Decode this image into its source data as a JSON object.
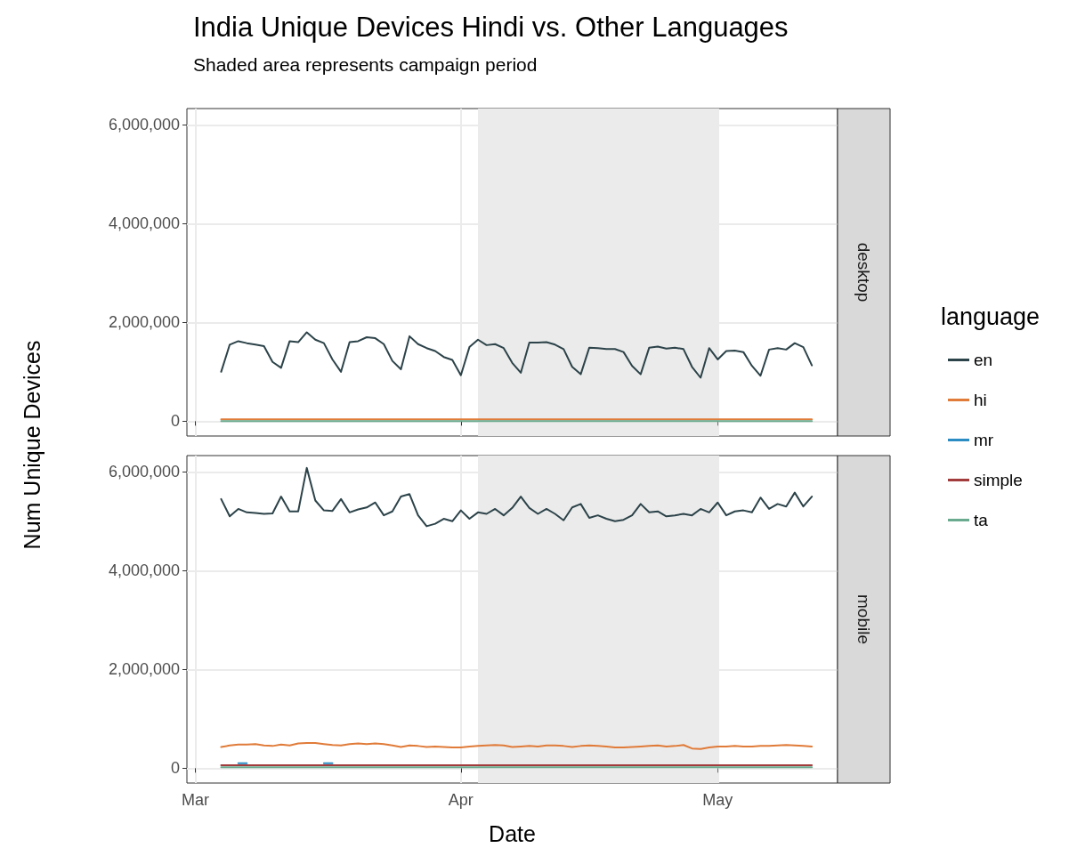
{
  "chart_data": [
    {
      "type": "line",
      "title": "India Unique Devices Hindi vs. Other Languages",
      "subtitle": "Shaded area represents campaign period",
      "ylabel": "Num Unique Devices",
      "legend_title": "language",
      "annotations": [
        "desktop"
      ],
      "x": [
        "--03-04",
        "--03-05",
        "--03-06",
        "--03-07",
        "--03-08",
        "--03-09",
        "--03-10",
        "--03-11",
        "--03-12",
        "--03-13",
        "--03-14",
        "--03-15",
        "--03-16",
        "--03-17",
        "--03-18",
        "--03-19",
        "--03-20",
        "--03-21",
        "--03-22",
        "--03-23",
        "--03-24",
        "--03-25",
        "--03-26",
        "--03-27",
        "--03-28",
        "--03-29",
        "--03-30",
        "--03-31",
        "--04-01",
        "--04-02",
        "--04-03",
        "--04-04",
        "--04-05",
        "--04-06",
        "--04-07",
        "--04-08",
        "--04-09",
        "--04-10",
        "--04-11",
        "--04-12",
        "--04-13",
        "--04-14",
        "--04-15",
        "--04-16",
        "--04-17",
        "--04-18",
        "--04-19",
        "--04-20",
        "--04-21",
        "--04-22",
        "--04-23",
        "--04-24",
        "--04-25",
        "--04-26",
        "--04-27",
        "--04-28",
        "--04-29",
        "--04-30",
        "--05-01",
        "--05-02",
        "--05-03",
        "--05-04",
        "--05-05",
        "--05-06",
        "--05-07",
        "--05-08",
        "--05-09",
        "--05-10",
        "--05-11",
        "--05-12"
      ],
      "series": [
        {
          "name": "en",
          "color": "#2c4349",
          "values": [
            1000000,
            1550000,
            1620000,
            1580000,
            1550000,
            1520000,
            1200000,
            1080000,
            1620000,
            1600000,
            1800000,
            1650000,
            1580000,
            1250000,
            1000000,
            1600000,
            1620000,
            1700000,
            1680000,
            1560000,
            1220000,
            1050000,
            1720000,
            1560000,
            1480000,
            1420000,
            1300000,
            1240000,
            930000,
            1500000,
            1650000,
            1540000,
            1560000,
            1480000,
            1180000,
            980000,
            1590000,
            1590000,
            1600000,
            1550000,
            1460000,
            1100000,
            950000,
            1490000,
            1480000,
            1460000,
            1460000,
            1400000,
            1120000,
            950000,
            1490000,
            1510000,
            1470000,
            1490000,
            1460000,
            1100000,
            880000,
            1480000,
            1250000,
            1420000,
            1430000,
            1400000,
            1120000,
            920000,
            1450000,
            1480000,
            1450000,
            1580000,
            1500000,
            1130000
          ]
        },
        {
          "name": "hi",
          "color": "#e07b39",
          "values": [
            40000,
            40000,
            40000,
            40000,
            40000,
            40000,
            40000,
            40000,
            40000,
            40000,
            40000,
            40000,
            40000,
            40000,
            40000,
            40000,
            40000,
            40000,
            40000,
            40000,
            40000,
            40000,
            40000,
            40000,
            40000,
            40000,
            40000,
            40000,
            40000,
            40000,
            40000,
            40000,
            40000,
            40000,
            40000,
            40000,
            40000,
            40000,
            40000,
            40000,
            40000,
            40000,
            40000,
            40000,
            40000,
            40000,
            40000,
            40000,
            40000,
            40000,
            40000,
            40000,
            40000,
            40000,
            40000,
            40000,
            40000,
            40000,
            40000,
            40000,
            40000,
            40000,
            40000,
            40000,
            40000,
            40000,
            40000,
            40000,
            40000,
            40000
          ]
        },
        {
          "name": "mr",
          "color": "#2b8cc4",
          "values": [
            null,
            null,
            null,
            null,
            null,
            null,
            null,
            null,
            null,
            null,
            null,
            null,
            null,
            null,
            null,
            null,
            null,
            null,
            null,
            null,
            null,
            null,
            null,
            null,
            null,
            null,
            null,
            null,
            null,
            null,
            null,
            null,
            null,
            null,
            null,
            null,
            null,
            null,
            null,
            null,
            null,
            null,
            null,
            null,
            null,
            null,
            null,
            null,
            null,
            null,
            null,
            null,
            null,
            null,
            null,
            null,
            null,
            null,
            null,
            null,
            null,
            null,
            null,
            null,
            null,
            null,
            null,
            null,
            null,
            null
          ]
        },
        {
          "name": "simple",
          "color": "#a23b3b",
          "values": [
            null,
            null,
            null,
            null,
            null,
            null,
            null,
            null,
            null,
            null,
            null,
            null,
            null,
            null,
            null,
            null,
            null,
            null,
            null,
            null,
            null,
            null,
            null,
            null,
            null,
            null,
            null,
            null,
            null,
            null,
            null,
            null,
            null,
            null,
            null,
            null,
            null,
            null,
            null,
            null,
            null,
            null,
            null,
            null,
            null,
            null,
            null,
            null,
            null,
            null,
            null,
            null,
            null,
            null,
            null,
            null,
            null,
            null,
            null,
            null,
            null,
            null,
            null,
            null,
            null,
            null,
            null,
            null,
            null,
            null
          ]
        },
        {
          "name": "ta",
          "color": "#6aaa8e",
          "values": [
            0,
            0,
            0,
            0,
            0,
            0,
            0,
            0,
            0,
            0,
            0,
            0,
            0,
            0,
            0,
            0,
            0,
            0,
            0,
            0,
            0,
            0,
            0,
            0,
            0,
            0,
            0,
            0,
            0,
            0,
            0,
            0,
            0,
            0,
            0,
            0,
            0,
            0,
            0,
            0,
            0,
            0,
            0,
            0,
            0,
            0,
            0,
            0,
            0,
            0,
            0,
            0,
            0,
            0,
            0,
            0,
            0,
            0,
            0,
            0,
            0,
            0,
            0,
            0,
            0,
            0,
            0,
            0,
            0,
            0
          ]
        }
      ],
      "xlim": [
        "--02-28",
        "--05-15"
      ],
      "xticks": [
        {
          "value": "--03-01",
          "label": null
        },
        {
          "value": "--04-01",
          "label": null
        },
        {
          "value": "--05-01",
          "label": null
        }
      ],
      "ylim": [
        -300000,
        6330000
      ],
      "yticks": [
        {
          "value": 0,
          "label": "0"
        },
        {
          "value": 2000000,
          "label": "2,000,000"
        },
        {
          "value": 4000000,
          "label": "4,000,000"
        },
        {
          "value": 6000000,
          "label": "6,000,000"
        }
      ],
      "bands": [
        {
          "axis": "x",
          "from": "--04-03",
          "to": "--05-01",
          "color": "#ebebeb"
        }
      ],
      "grid": true,
      "legend": "right",
      "marker": "none",
      "line_style": "solid",
      "tick_labels": "y"
    },
    {
      "type": "line",
      "xlabel": "Date",
      "annotations": [
        "mobile"
      ],
      "x": [
        "--03-04",
        "--03-05",
        "--03-06",
        "--03-07",
        "--03-08",
        "--03-09",
        "--03-10",
        "--03-11",
        "--03-12",
        "--03-13",
        "--03-14",
        "--03-15",
        "--03-16",
        "--03-17",
        "--03-18",
        "--03-19",
        "--03-20",
        "--03-21",
        "--03-22",
        "--03-23",
        "--03-24",
        "--03-25",
        "--03-26",
        "--03-27",
        "--03-28",
        "--03-29",
        "--03-30",
        "--03-31",
        "--04-01",
        "--04-02",
        "--04-03",
        "--04-04",
        "--04-05",
        "--04-06",
        "--04-07",
        "--04-08",
        "--04-09",
        "--04-10",
        "--04-11",
        "--04-12",
        "--04-13",
        "--04-14",
        "--04-15",
        "--04-16",
        "--04-17",
        "--04-18",
        "--04-19",
        "--04-20",
        "--04-21",
        "--04-22",
        "--04-23",
        "--04-24",
        "--04-25",
        "--04-26",
        "--04-27",
        "--04-28",
        "--04-29",
        "--04-30",
        "--05-01",
        "--05-02",
        "--05-03",
        "--05-04",
        "--05-05",
        "--05-06",
        "--05-07",
        "--05-08",
        "--05-09",
        "--05-10",
        "--05-11",
        "--05-12"
      ],
      "series": [
        {
          "color": "#2c4349",
          "values": [
            5450000,
            5100000,
            5250000,
            5180000,
            5170000,
            5150000,
            5160000,
            5500000,
            5200000,
            5200000,
            6080000,
            5420000,
            5220000,
            5210000,
            5450000,
            5180000,
            5240000,
            5280000,
            5380000,
            5120000,
            5200000,
            5500000,
            5550000,
            5120000,
            4900000,
            4950000,
            5050000,
            5000000,
            5220000,
            5050000,
            5180000,
            5150000,
            5250000,
            5120000,
            5270000,
            5500000,
            5270000,
            5150000,
            5250000,
            5150000,
            5020000,
            5280000,
            5350000,
            5070000,
            5120000,
            5050000,
            5000000,
            5030000,
            5120000,
            5350000,
            5180000,
            5200000,
            5100000,
            5120000,
            5150000,
            5120000,
            5250000,
            5180000,
            5380000,
            5120000,
            5200000,
            5220000,
            5180000,
            5480000,
            5250000,
            5350000,
            5300000,
            5580000,
            5300000,
            5500000
          ]
        },
        {
          "color": "#e07b39",
          "values": [
            430000,
            460000,
            480000,
            480000,
            490000,
            460000,
            450000,
            480000,
            460000,
            500000,
            510000,
            510000,
            490000,
            470000,
            460000,
            490000,
            500000,
            490000,
            500000,
            490000,
            460000,
            430000,
            460000,
            450000,
            430000,
            440000,
            430000,
            420000,
            420000,
            440000,
            450000,
            460000,
            470000,
            460000,
            430000,
            440000,
            450000,
            440000,
            460000,
            460000,
            450000,
            430000,
            450000,
            460000,
            450000,
            440000,
            420000,
            420000,
            430000,
            440000,
            450000,
            460000,
            440000,
            450000,
            470000,
            400000,
            390000,
            420000,
            440000,
            440000,
            450000,
            440000,
            440000,
            450000,
            450000,
            460000,
            470000,
            460000,
            450000,
            440000
          ]
        },
        {
          "color": "#2b8cc4",
          "values": [
            null,
            null,
            100000,
            100000,
            null,
            null,
            null,
            null,
            null,
            null,
            null,
            null,
            100000,
            100000,
            null,
            null,
            null,
            null,
            null,
            null,
            null,
            null,
            null,
            null,
            null,
            null,
            null,
            null,
            null,
            null,
            null,
            null,
            null,
            null,
            null,
            null,
            null,
            null,
            null,
            null,
            null,
            null,
            null,
            null,
            null,
            null,
            null,
            null,
            null,
            null,
            null,
            null,
            null,
            null,
            null,
            null,
            null,
            null,
            null,
            null,
            null,
            null,
            null,
            null,
            null,
            null,
            null,
            null,
            null,
            null
          ]
        },
        {
          "color": "#a23b3b",
          "values": [
            60000,
            60000,
            60000,
            60000,
            60000,
            60000,
            60000,
            60000,
            60000,
            60000,
            60000,
            60000,
            60000,
            60000,
            60000,
            60000,
            60000,
            60000,
            60000,
            60000,
            60000,
            60000,
            60000,
            60000,
            60000,
            60000,
            60000,
            60000,
            60000,
            60000,
            60000,
            60000,
            60000,
            60000,
            60000,
            60000,
            60000,
            60000,
            60000,
            60000,
            60000,
            60000,
            60000,
            60000,
            60000,
            60000,
            60000,
            60000,
            60000,
            60000,
            60000,
            60000,
            60000,
            60000,
            60000,
            60000,
            60000,
            60000,
            60000,
            60000,
            60000,
            60000,
            60000,
            60000,
            60000,
            60000,
            60000,
            60000,
            60000,
            60000
          ]
        },
        {
          "color": "#6aaa8e",
          "values": [
            20000,
            20000,
            20000,
            20000,
            20000,
            20000,
            20000,
            20000,
            20000,
            20000,
            20000,
            20000,
            20000,
            20000,
            20000,
            20000,
            20000,
            20000,
            20000,
            20000,
            20000,
            20000,
            20000,
            20000,
            20000,
            20000,
            20000,
            20000,
            20000,
            20000,
            20000,
            20000,
            20000,
            20000,
            20000,
            20000,
            20000,
            20000,
            20000,
            20000,
            20000,
            20000,
            20000,
            20000,
            20000,
            20000,
            20000,
            20000,
            20000,
            20000,
            20000,
            20000,
            20000,
            20000,
            20000,
            20000,
            20000,
            20000,
            20000,
            20000,
            20000,
            20000,
            20000,
            20000,
            20000,
            20000,
            20000,
            20000,
            20000,
            20000
          ]
        }
      ],
      "xlim": [
        "--02-28",
        "--05-15"
      ],
      "xticks": [
        {
          "value": "--03-01",
          "label": "Mar"
        },
        {
          "value": "--04-01",
          "label": "Apr"
        },
        {
          "value": "--05-01",
          "label": "May"
        }
      ],
      "ylim": [
        -300000,
        6330000
      ],
      "yticks": [
        {
          "value": 0,
          "label": "0"
        },
        {
          "value": 2000000,
          "label": "2,000,000"
        },
        {
          "value": 4000000,
          "label": "4,000,000"
        },
        {
          "value": 6000000,
          "label": "6,000,000"
        }
      ],
      "bands": [
        {
          "axis": "x",
          "from": "--04-03",
          "to": "--05-01",
          "color": "#ebebeb"
        }
      ],
      "grid": true,
      "marker": "none",
      "line_style": "solid"
    }
  ]
}
